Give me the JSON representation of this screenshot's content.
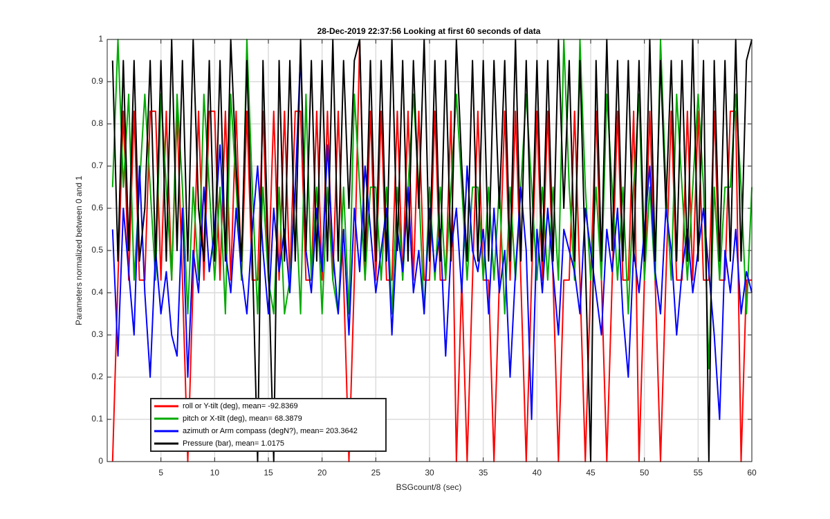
{
  "chart_data": {
    "type": "line",
    "title": "28-Dec-2019 22:37:56 Looking at first 60 seconds of data",
    "x_label": "BSGcount/8 (sec)",
    "y_label": "Parameters normalized between 0 and 1",
    "xlim": [
      0,
      60
    ],
    "ylim": [
      0,
      1
    ],
    "xticks": [
      5,
      10,
      15,
      20,
      25,
      30,
      35,
      40,
      45,
      50,
      55,
      60
    ],
    "yticks": [
      0,
      0.1,
      0.2,
      0.3,
      0.4,
      0.5,
      0.6,
      0.7,
      0.8,
      0.9,
      1
    ],
    "grid": true,
    "legend": "lower left",
    "x": [
      0.5,
      1,
      1.5,
      2,
      2.5,
      3,
      3.5,
      4,
      4.5,
      5,
      5.5,
      6,
      6.5,
      7,
      7.5,
      8,
      8.5,
      9,
      9.5,
      10,
      10.5,
      11,
      11.5,
      12,
      12.5,
      13,
      13.5,
      14,
      14.5,
      15,
      15.5,
      16,
      16.5,
      17,
      17.5,
      18,
      18.5,
      19,
      19.5,
      20,
      20.5,
      21,
      21.5,
      22,
      22.5,
      23,
      23.5,
      24,
      24.5,
      25,
      25.5,
      26,
      26.5,
      27,
      27.5,
      28,
      28.5,
      29,
      29.5,
      30,
      30.5,
      31,
      31.5,
      32,
      32.5,
      33,
      33.5,
      34,
      34.5,
      35,
      35.5,
      36,
      36.5,
      37,
      37.5,
      38,
      38.5,
      39,
      39.5,
      40,
      40.5,
      41,
      41.5,
      42,
      42.5,
      43,
      43.5,
      44,
      44.5,
      45,
      45.5,
      46,
      46.5,
      47,
      47.5,
      48,
      48.5,
      49,
      49.5,
      50,
      50.5,
      51,
      51.5,
      52,
      52.5,
      53,
      53.5,
      54,
      54.5,
      55,
      55.5,
      56,
      56.5,
      57,
      57.5,
      58,
      58.5,
      59,
      59.5,
      60
    ],
    "series": [
      {
        "name": "roll or Y-tilt (deg), mean= -92.8369",
        "color": "#ff0000",
        "values": [
          0,
          0.43,
          0.83,
          0.43,
          0.83,
          0.43,
          0.43,
          0.83,
          0.83,
          0.43,
          0.83,
          0.43,
          0.83,
          0.43,
          0,
          0.43,
          0.83,
          0.43,
          0.83,
          0.83,
          0.43,
          0.83,
          0.43,
          0.83,
          0.43,
          0.83,
          0.43,
          0.43,
          0.83,
          0.43,
          0.83,
          0.43,
          0.83,
          0.43,
          0.83,
          0.83,
          0.43,
          0.43,
          0.83,
          0.43,
          0.83,
          0.43,
          0.83,
          0.43,
          0,
          0.43,
          1,
          0.43,
          0.83,
          0.43,
          0.83,
          0.43,
          0.43,
          0.83,
          0.43,
          0.83,
          0.43,
          0.83,
          0.43,
          0.43,
          0.83,
          0.43,
          0.43,
          0.83,
          0,
          0.43,
          0,
          0.43,
          0.83,
          0.43,
          0.43,
          0,
          0.43,
          0.83,
          0.43,
          0.83,
          0.43,
          0,
          0.43,
          0.83,
          0.43,
          0.83,
          0.43,
          0,
          0.43,
          0.43,
          0.83,
          0.43,
          0,
          0.43,
          0.83,
          0.43,
          0,
          0.43,
          0.83,
          0.43,
          0.43,
          0.83,
          0,
          0.43,
          0.83,
          0.43,
          0,
          0.43,
          0.83,
          0.43,
          0.43,
          0.83,
          0.43,
          0.83,
          0.43,
          0.43,
          0.83,
          0.43,
          0.43,
          0.83,
          0.83,
          0,
          0.43,
          0.43
        ]
      },
      {
        "name": "pitch or X-tilt (deg), mean= 68.3879",
        "color": "#00aa00",
        "values": [
          0.65,
          1,
          0.65,
          0.87,
          0.43,
          0.65,
          0.87,
          0.65,
          0.43,
          0.87,
          0.65,
          0.43,
          0.87,
          0.65,
          0.35,
          0.65,
          0.43,
          0.87,
          0.65,
          0.43,
          0.65,
          0.35,
          0.87,
          0.65,
          0.43,
          1,
          0.65,
          0.35,
          0.65,
          0.43,
          0.35,
          0.65,
          0.35,
          0.43,
          0.65,
          0.35,
          0.87,
          0.43,
          0.65,
          0.35,
          0.65,
          0.43,
          0.35,
          0.65,
          0.35,
          0.87,
          0.65,
          0.43,
          0.65,
          0.65,
          0.43,
          0.65,
          0.35,
          0.65,
          0.43,
          0.65,
          0.87,
          0.65,
          0.35,
          0.65,
          0.43,
          0.65,
          0.43,
          0.65,
          0.87,
          0.65,
          0.43,
          0.65,
          0.65,
          0.43,
          0.65,
          0.43,
          0.65,
          0.35,
          0.65,
          0.43,
          0.65,
          0.87,
          0.65,
          0.43,
          0.65,
          0.43,
          0.65,
          0.43,
          1,
          0.65,
          0.43,
          1,
          0.65,
          0.43,
          0.65,
          0.43,
          0.87,
          0.65,
          0.43,
          0.65,
          0.35,
          0.65,
          0.87,
          0.43,
          0.65,
          0.43,
          1,
          0.65,
          0.43,
          0.87,
          0.65,
          0.43,
          0.65,
          0.87,
          0.65,
          0.22,
          0.65,
          0.43,
          0.65,
          0.65,
          0.87,
          0.65,
          0.35,
          0.65
        ]
      },
      {
        "name": "azimuth or Arm compass (degN?), mean= 203.3642",
        "color": "#0000ff",
        "values": [
          0.55,
          0.25,
          0.6,
          0.45,
          0.3,
          0.7,
          0.4,
          0.2,
          0.5,
          0.35,
          0.45,
          0.3,
          0.25,
          0.6,
          0.2,
          0.5,
          0.4,
          0.65,
          0.45,
          0.55,
          0.75,
          0.5,
          0.4,
          0.6,
          0.45,
          0.35,
          0.55,
          0.7,
          0.5,
          0.35,
          0.6,
          0.45,
          0.55,
          0.4,
          0.65,
          0.97,
          0.5,
          0.4,
          0.6,
          0.45,
          0.75,
          0.5,
          0.35,
          0.55,
          0.3,
          0.6,
          0.45,
          0.7,
          0.55,
          0.4,
          0.5,
          0.6,
          0.3,
          0.55,
          0.45,
          0.65,
          0.4,
          0.5,
          0.35,
          0.6,
          0.45,
          0.55,
          0.25,
          0.5,
          0.6,
          0.4,
          0.7,
          0.5,
          0.45,
          0.55,
          0.35,
          0.6,
          0.4,
          0.5,
          0.2,
          0.45,
          0.65,
          0.5,
          0.1,
          0.55,
          0.4,
          0.6,
          0.45,
          0.3,
          0.55,
          0.5,
          0.45,
          0.35,
          0.6,
          0.5,
          0.4,
          0.3,
          0.55,
          0.45,
          0.6,
          0.35,
          0.2,
          0.5,
          0.4,
          0.55,
          0.7,
          0.45,
          0.35,
          0.6,
          0.5,
          0.3,
          0.45,
          0.55,
          0.4,
          0.5,
          0.6,
          0.45,
          0.3,
          0.1,
          0.5,
          0.4,
          0.55,
          0.35,
          0.45,
          0.4
        ]
      },
      {
        "name": "Pressure (bar), mean= 1.0175",
        "color": "#000000",
        "values": [
          0.95,
          0.475,
          0.95,
          0.5,
          0.95,
          0.475,
          0.6,
          0.95,
          0.475,
          0.95,
          0.475,
          1,
          0.5,
          0.95,
          0.475,
          1,
          0.6,
          0.475,
          0.95,
          0.475,
          0.95,
          0.475,
          1,
          0.7,
          0.475,
          0.95,
          0.5,
          0,
          0.95,
          0.475,
          0,
          0.95,
          0.475,
          0.95,
          0.475,
          1,
          0.5,
          0.95,
          0.475,
          0.95,
          0.475,
          1,
          0.475,
          0.95,
          0.6,
          0.95,
          1,
          0.475,
          0.95,
          0.475,
          0.95,
          0.475,
          1,
          0.5,
          0.95,
          0.475,
          0.95,
          0.6,
          1,
          0.475,
          0.95,
          0.475,
          0.95,
          0.475,
          1,
          0.7,
          0.475,
          0.95,
          0.475,
          0.95,
          0.475,
          0.95,
          0.6,
          0.95,
          0.475,
          1,
          0.475,
          0.95,
          0.475,
          0.95,
          0.475,
          0.95,
          0.475,
          1,
          0.6,
          0.95,
          0.475,
          0.95,
          0.475,
          0,
          0.95,
          0.475,
          1,
          0.5,
          0.95,
          0.475,
          0.95,
          0.475,
          0.95,
          0.475,
          1,
          0.475,
          0.95,
          0.6,
          0.95,
          0.475,
          0.95,
          0.475,
          1,
          0.475,
          0.95,
          0,
          0.95,
          0.475,
          0.95,
          0.475,
          1,
          0.475,
          0.95,
          1
        ]
      }
    ]
  }
}
